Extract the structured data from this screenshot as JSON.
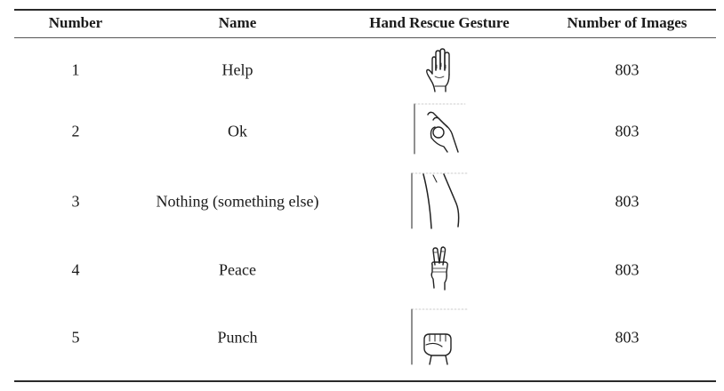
{
  "table": {
    "headers": {
      "number": "Number",
      "name": "Name",
      "gesture": "Hand Rescue Gesture",
      "images": "Number of Images"
    },
    "rows": [
      {
        "number": "1",
        "name": "Help",
        "gesture_icon": "open-palm-hand-icon",
        "images": "803"
      },
      {
        "number": "2",
        "name": "Ok",
        "gesture_icon": "ok-sign-hand-icon",
        "images": "803"
      },
      {
        "number": "3",
        "name": "Nothing (something else)",
        "gesture_icon": "arm-outline-icon",
        "images": "803"
      },
      {
        "number": "4",
        "name": "Peace",
        "gesture_icon": "peace-sign-hand-icon",
        "images": "803"
      },
      {
        "number": "5",
        "name": "Punch",
        "gesture_icon": "fist-hand-icon",
        "images": "803"
      }
    ]
  }
}
